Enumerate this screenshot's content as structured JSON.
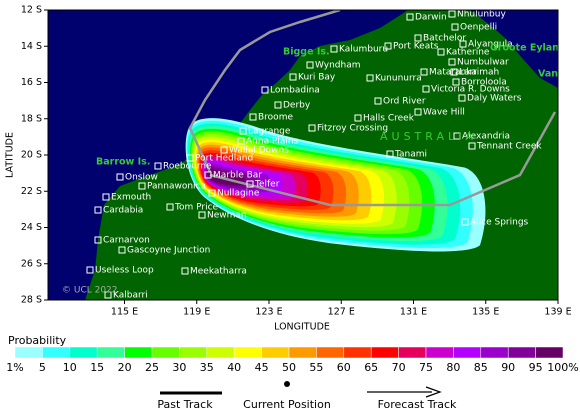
{
  "map": {
    "x_label": "LONGITUDE",
    "y_label": "LATITUDE",
    "x_ticks": [
      "115 E",
      "119 E",
      "123 E",
      "127 E",
      "131 E",
      "135 E",
      "139 E"
    ],
    "y_ticks": [
      "12 S",
      "14 S",
      "16 S",
      "18 S",
      "20 S",
      "22 S",
      "24 S",
      "26 S",
      "28 S"
    ],
    "region_label": "AUSTRALIA",
    "copyright": "© UCL 2022",
    "places": [
      "Darwin",
      "Nhulunbuy",
      "Oenpelli",
      "Batchelor",
      "Alyangula",
      "Katherine",
      "Port Keats",
      "Kalumburu",
      "Wyndham",
      "Numbulwar",
      "Kuri Bay",
      "Kununurra",
      "Mataranka",
      "Larrimah",
      "Borroloola",
      "Victoria R. Downs",
      "Daly Waters",
      "Lombadina",
      "Derby",
      "Ord River",
      "Wave Hill",
      "Broome",
      "Halls Creek",
      "Fitzroy Crossing",
      "Lagrange",
      "Anna Plains",
      "Alexandria",
      "Tennant Creek",
      "Wallal Downs",
      "Port Hedland",
      "Roebourne",
      "Tanami",
      "Onslow",
      "Marble Bar",
      "Telfer",
      "Pannawonica",
      "Exmouth",
      "Nullagine",
      "Tom Price",
      "Cardabia",
      "Newman",
      "Alice Springs",
      "Carnarvon",
      "Gascoyne Junction",
      "Useless Loop",
      "Meekatharra",
      "Kalbarri"
    ],
    "islands": [
      "Bigge Is.",
      "Barrow Is.",
      "Groote Eylandt",
      "Vanderlin"
    ]
  },
  "colorbar": {
    "title": "Probability",
    "labels": [
      "1%",
      "5",
      "10",
      "15",
      "20",
      "25",
      "30",
      "35",
      "40",
      "45",
      "50",
      "55",
      "60",
      "65",
      "70",
      "75",
      "80",
      "85",
      "90",
      "95",
      "100%"
    ],
    "colors": [
      "#99ffff",
      "#33ffff",
      "#00ffcc",
      "#33ff99",
      "#00ff00",
      "#66ff00",
      "#99ff00",
      "#ccff00",
      "#ffff00",
      "#ffcc00",
      "#ff9900",
      "#ff6600",
      "#ff3300",
      "#ff0000",
      "#e6005c",
      "#cc00cc",
      "#b300ff",
      "#9900cc",
      "#800099",
      "#660066"
    ]
  },
  "legend": {
    "past": "Past Track",
    "current": "Current Position",
    "forecast": "Forecast Track"
  }
}
